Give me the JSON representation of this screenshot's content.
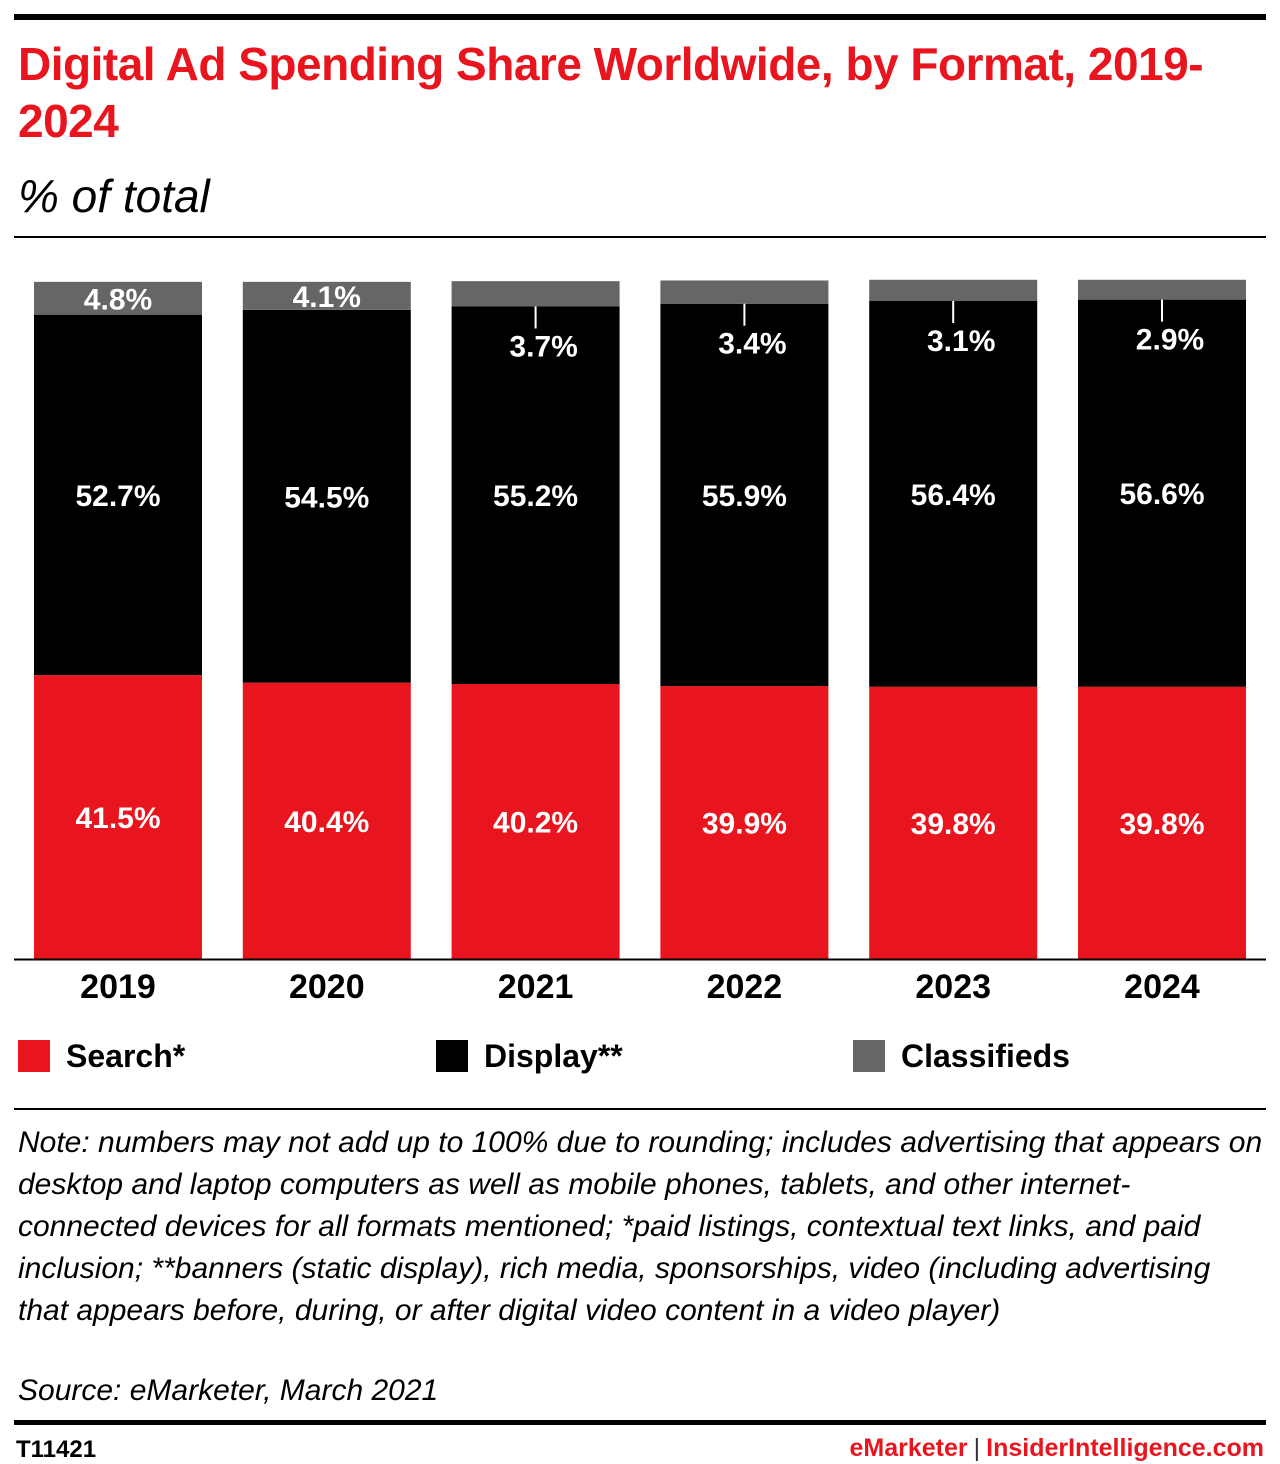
{
  "header": {
    "title": "Digital Ad Spending Share Worldwide, by Format, 2019-2024",
    "subtitle": "% of total"
  },
  "chart_data": {
    "type": "bar",
    "stacked": true,
    "categories": [
      "2019",
      "2020",
      "2021",
      "2022",
      "2023",
      "2024"
    ],
    "series": [
      {
        "name": "Search*",
        "color": "#e8141e",
        "values": [
          41.5,
          40.4,
          40.2,
          39.9,
          39.8,
          39.8
        ]
      },
      {
        "name": "Display**",
        "color": "#000000",
        "values": [
          52.7,
          54.5,
          55.2,
          55.9,
          56.4,
          56.6
        ]
      },
      {
        "name": "Classifieds",
        "color": "#666666",
        "values": [
          4.8,
          4.1,
          3.7,
          3.4,
          3.1,
          2.9
        ]
      }
    ],
    "value_suffix": "%",
    "ylim": [
      0,
      100
    ],
    "grid": false,
    "legend": "bottom"
  },
  "legend": {
    "items": [
      {
        "label": "Search*",
        "color": "#e8141e"
      },
      {
        "label": "Display**",
        "color": "#000000"
      },
      {
        "label": "Classifieds",
        "color": "#666666"
      }
    ]
  },
  "footer": {
    "note": "Note: numbers may not add up to 100% due to rounding; includes advertising that appears on desktop and laptop computers as well as mobile phones, tablets, and other internet-connected devices for all formats mentioned; *paid listings, contextual text links, and paid inclusion; **banners (static display), rich media, sponsorships, video (including advertising that appears before, during, or after digital video content in a video player)",
    "source": "Source: eMarketer, March 2021",
    "chart_id": "T11421",
    "brand_left": "eMarketer",
    "brand_separator": "|",
    "brand_right": "InsiderIntelligence.com"
  }
}
